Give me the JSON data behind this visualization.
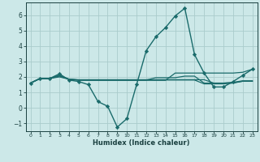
{
  "title": "",
  "xlabel": "Humidex (Indice chaleur)",
  "bg_color": "#cce8e8",
  "grid_color": "#aacccc",
  "line_color": "#1a6b6b",
  "xlim": [
    -0.5,
    23.5
  ],
  "ylim": [
    -1.5,
    6.8
  ],
  "yticks": [
    -1,
    0,
    1,
    2,
    3,
    4,
    5,
    6
  ],
  "xticks": [
    0,
    1,
    2,
    3,
    4,
    5,
    6,
    7,
    8,
    9,
    10,
    11,
    12,
    13,
    14,
    15,
    16,
    17,
    18,
    19,
    20,
    21,
    22,
    23
  ],
  "lines": [
    {
      "x": [
        0,
        1,
        2,
        3,
        4,
        5,
        6,
        7,
        8,
        9,
        10,
        11,
        12,
        13,
        14,
        15,
        16,
        17,
        18,
        19,
        20,
        21,
        22,
        23
      ],
      "y": [
        1.6,
        1.9,
        1.9,
        2.2,
        1.8,
        1.7,
        1.5,
        0.4,
        0.1,
        -1.25,
        -0.7,
        1.5,
        3.7,
        4.6,
        5.2,
        5.95,
        6.45,
        3.45,
        2.25,
        1.35,
        1.35,
        1.7,
        2.1,
        2.5
      ],
      "marker": "D",
      "linewidth": 1.0,
      "markersize": 2.2
    },
    {
      "x": [
        0,
        1,
        2,
        3,
        4,
        5,
        6,
        7,
        8,
        9,
        10,
        11,
        12,
        13,
        14,
        15,
        16,
        17,
        18,
        19,
        20,
        21,
        22,
        23
      ],
      "y": [
        1.6,
        1.9,
        1.9,
        2.1,
        1.85,
        1.78,
        1.78,
        1.78,
        1.78,
        1.78,
        1.78,
        1.78,
        1.78,
        1.78,
        1.78,
        2.25,
        2.25,
        2.25,
        2.25,
        2.25,
        2.25,
        2.25,
        2.3,
        2.5
      ],
      "marker": null,
      "linewidth": 0.9
    },
    {
      "x": [
        0,
        1,
        2,
        3,
        4,
        5,
        6,
        7,
        8,
        9,
        10,
        11,
        12,
        13,
        14,
        15,
        16,
        17,
        18,
        19,
        20,
        21,
        22,
        23
      ],
      "y": [
        1.6,
        1.9,
        1.9,
        2.05,
        1.85,
        1.8,
        1.8,
        1.8,
        1.8,
        1.8,
        1.8,
        1.8,
        1.8,
        1.95,
        1.95,
        1.95,
        2.05,
        2.05,
        1.6,
        1.6,
        1.6,
        1.65,
        1.75,
        1.75
      ],
      "marker": null,
      "linewidth": 0.9
    },
    {
      "x": [
        0,
        1,
        2,
        3,
        4,
        5,
        6,
        7,
        8,
        9,
        10,
        11,
        12,
        13,
        14,
        15,
        16,
        17,
        18,
        19,
        20,
        21,
        22,
        23
      ],
      "y": [
        1.6,
        1.9,
        1.9,
        2.1,
        1.85,
        1.8,
        1.8,
        1.8,
        1.8,
        1.8,
        1.8,
        1.8,
        1.8,
        1.8,
        1.8,
        1.8,
        1.8,
        1.8,
        1.55,
        1.55,
        1.55,
        1.6,
        1.72,
        1.72
      ],
      "marker": null,
      "linewidth": 0.9
    },
    {
      "x": [
        0,
        1,
        2,
        3,
        4,
        5,
        6,
        7,
        8,
        9,
        10,
        11,
        12,
        13,
        14,
        15,
        16,
        17,
        18,
        19,
        20,
        21,
        22,
        23
      ],
      "y": [
        1.6,
        1.9,
        1.9,
        2.0,
        1.85,
        1.82,
        1.82,
        1.82,
        1.82,
        1.82,
        1.82,
        1.82,
        1.82,
        1.82,
        1.82,
        1.82,
        1.82,
        1.82,
        1.82,
        1.6,
        1.6,
        1.62,
        1.72,
        1.72
      ],
      "marker": null,
      "linewidth": 0.9
    }
  ]
}
